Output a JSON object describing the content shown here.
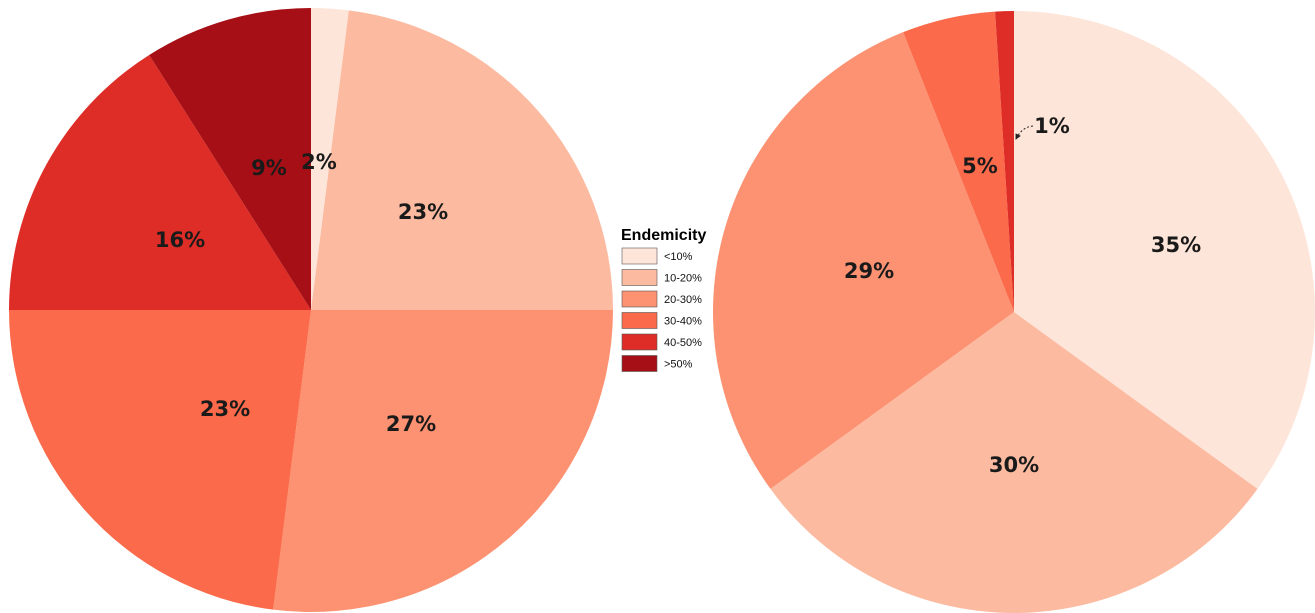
{
  "legend": {
    "title": "Endemicity",
    "items": [
      {
        "label": "<10%",
        "color": "#fee5d9"
      },
      {
        "label": "10-20%",
        "color": "#fcbba1"
      },
      {
        "label": "20-30%",
        "color": "#fc9272"
      },
      {
        "label": "30-40%",
        "color": "#fb6a4a"
      },
      {
        "label": "40-50%",
        "color": "#de2d26"
      },
      {
        "label": ">50%",
        "color": "#a50f15"
      }
    ]
  },
  "chart_data": [
    {
      "type": "pie",
      "title": "",
      "categories": [
        "<10%",
        "10-20%",
        "20-30%",
        "30-40%",
        "40-50%",
        ">50%"
      ],
      "values": [
        2,
        23,
        27,
        23,
        16,
        9
      ],
      "labels": [
        "2%",
        "23%",
        "27%",
        "23%",
        "16%",
        "9%"
      ],
      "start": "12 o'clock",
      "direction": "clockwise"
    },
    {
      "type": "pie",
      "title": "",
      "categories": [
        "<10%",
        "10-20%",
        "20-30%",
        "30-40%",
        "40-50%"
      ],
      "values": [
        35,
        30,
        29,
        5,
        1
      ],
      "labels": [
        "35%",
        "30%",
        "29%",
        "5%",
        "1%"
      ],
      "start": "12 o'clock",
      "direction": "clockwise"
    }
  ]
}
